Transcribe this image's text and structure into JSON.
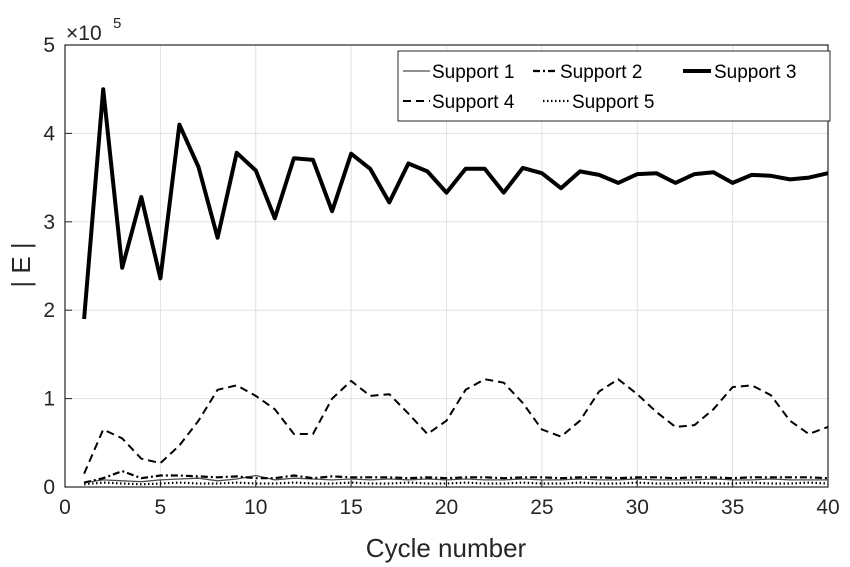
{
  "chart_data": {
    "type": "line",
    "xlabel": "Cycle number",
    "ylabel": "| E |",
    "xlim": [
      0,
      40
    ],
    "ylim": [
      0,
      500000
    ],
    "grid": true,
    "legend_position": "top-right",
    "y_exponent_label": {
      "base": "×10",
      "power": "5"
    },
    "xticks": [
      0,
      5,
      10,
      15,
      20,
      25,
      30,
      35,
      40
    ],
    "yticks": [
      0,
      1,
      2,
      3,
      4,
      5
    ],
    "x": [
      1,
      2,
      3,
      4,
      5,
      6,
      7,
      8,
      9,
      10,
      11,
      12,
      13,
      14,
      15,
      16,
      17,
      18,
      19,
      20,
      21,
      22,
      23,
      24,
      25,
      26,
      27,
      28,
      29,
      30,
      31,
      32,
      33,
      34,
      35,
      36,
      37,
      38,
      39,
      40
    ],
    "series": [
      {
        "name": "Support 1",
        "style": "solid-thin",
        "color": "#4d4d4d",
        "values": [
          5000,
          8000,
          7000,
          6000,
          8000,
          9000,
          10000,
          7000,
          9000,
          13000,
          8000,
          10000,
          9000,
          8000,
          9000,
          8000,
          9000,
          8000,
          9000,
          8000,
          9000,
          8000,
          8000,
          9000,
          8000,
          8000,
          9000,
          8000,
          8000,
          9000,
          8000,
          8000,
          8000,
          9000,
          8000,
          8000,
          9000,
          8000,
          8000,
          8000
        ]
      },
      {
        "name": "Support 2",
        "style": "dash-dot",
        "color": "#000000",
        "values": [
          5000,
          10000,
          18000,
          10000,
          13000,
          13000,
          12000,
          11000,
          12000,
          10000,
          10000,
          13000,
          10000,
          12000,
          11000,
          11000,
          11000,
          10000,
          11000,
          10000,
          11000,
          11000,
          10000,
          11000,
          11000,
          10000,
          11000,
          11000,
          10000,
          11000,
          11000,
          10000,
          11000,
          11000,
          10000,
          11000,
          11000,
          11000,
          11000,
          10000
        ]
      },
      {
        "name": "Support 3",
        "style": "solid-thick",
        "color": "#000000",
        "values": [
          190000,
          450000,
          248000,
          328000,
          236000,
          410000,
          362000,
          282000,
          378000,
          358000,
          304000,
          372000,
          370000,
          312000,
          377000,
          360000,
          322000,
          366000,
          357000,
          333000,
          360000,
          360000,
          333000,
          361000,
          355000,
          338000,
          357000,
          353000,
          344000,
          354000,
          355000,
          344000,
          354000,
          356000,
          344000,
          353000,
          352000,
          348000,
          350000,
          355000
        ]
      },
      {
        "name": "Support 4",
        "style": "dashed",
        "color": "#000000",
        "values": [
          15000,
          65000,
          55000,
          32000,
          27000,
          47000,
          75000,
          110000,
          115000,
          103000,
          88000,
          60000,
          60000,
          100000,
          120000,
          103000,
          105000,
          83000,
          60000,
          75000,
          110000,
          122000,
          118000,
          95000,
          65000,
          57000,
          75000,
          108000,
          122000,
          105000,
          85000,
          68000,
          70000,
          88000,
          113000,
          115000,
          104000,
          75000,
          60000,
          68000
        ]
      },
      {
        "name": "Support 5",
        "style": "dotted",
        "color": "#000000",
        "values": [
          3000,
          5000,
          4000,
          3000,
          4000,
          5000,
          4000,
          4000,
          5000,
          4000,
          4000,
          5000,
          4000,
          4000,
          5000,
          4000,
          4000,
          5000,
          4000,
          4000,
          5000,
          4000,
          4000,
          5000,
          4000,
          4000,
          5000,
          4000,
          4000,
          5000,
          4000,
          4000,
          5000,
          4000,
          4000,
          5000,
          4000,
          4000,
          5000,
          4000
        ]
      }
    ]
  }
}
